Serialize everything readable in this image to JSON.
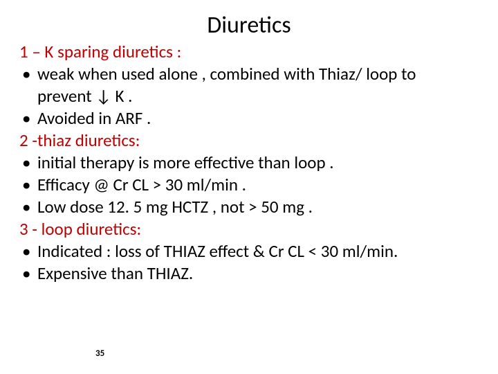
{
  "title": "Diuretics",
  "slide_number": "35",
  "colors": {
    "heading": "#c00000",
    "body": "#000000",
    "background": "#ffffff"
  },
  "typography": {
    "title_fontsize": 34,
    "body_fontsize": 25,
    "slidenum_fontsize": 13,
    "font_family": "Calibri"
  },
  "sections": [
    {
      "heading": "1 – K sparing diuretics :",
      "bullets": [
        " weak when used alone , combined with Thiaz/ loop to prevent ↓ K .",
        "Avoided in ARF ."
      ]
    },
    {
      "heading": "2 -thiaz diuretics:",
      "bullets": [
        " initial therapy is more effective than loop .",
        "Efficacy @ Cr CL > 30 ml/min .",
        "Low dose 12. 5 mg HCTZ , not > 50 mg ."
      ]
    },
    {
      "heading": "3 - loop diuretics:",
      "bullets": [
        "Indicated : loss of THIAZ effect & Cr CL < 30 ml/min.",
        "Expensive than THIAZ."
      ]
    }
  ],
  "bullet_char": "•"
}
